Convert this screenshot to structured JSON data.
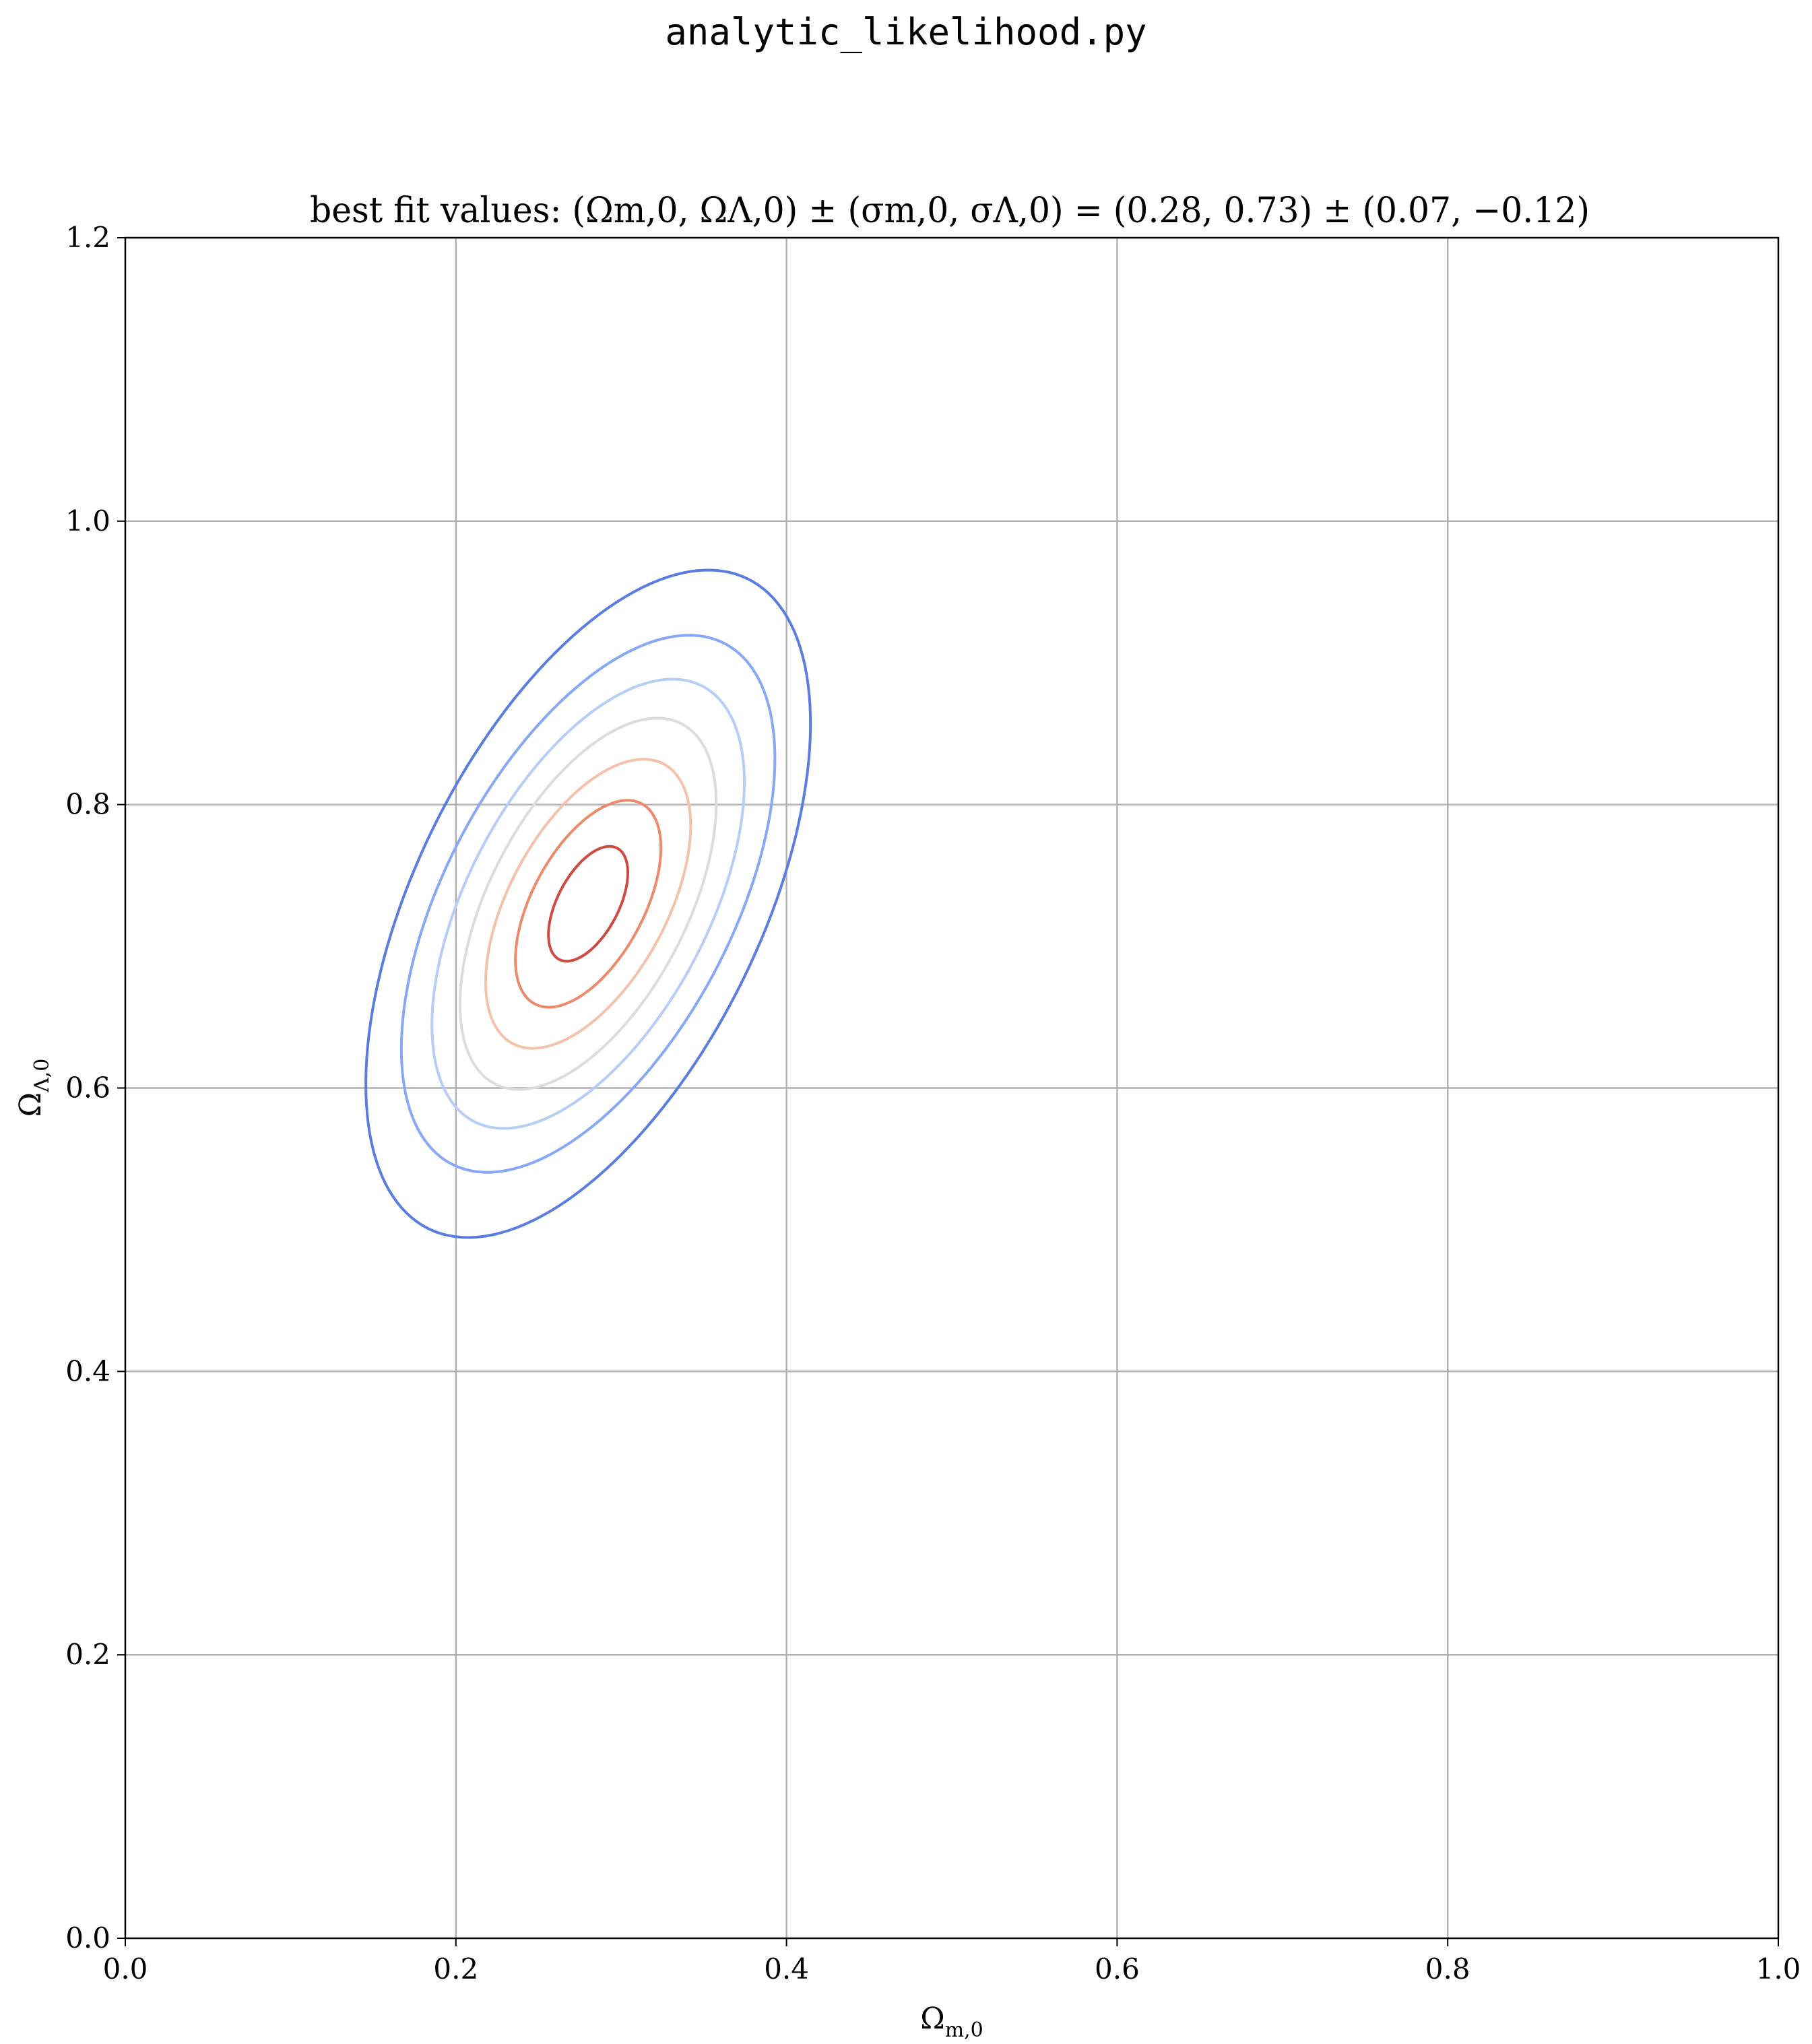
{
  "figure": {
    "suptitle": "analytic_likelihood.py"
  },
  "chart_data": {
    "type": "contour",
    "title": "best fit values: (Ωm,0, ΩΛ,0) ± (σm,0, σΛ,0) = (0.28, 0.73) ± (0.07, −0.12)",
    "xlabel": {
      "main": "Ω",
      "sub": "m,0"
    },
    "ylabel": {
      "main": "Ω",
      "sub": "Λ,0"
    },
    "xlim": [
      0.0,
      1.0
    ],
    "ylim": [
      0.0,
      1.2
    ],
    "xticks": [
      0.0,
      0.2,
      0.4,
      0.6,
      0.8,
      1.0
    ],
    "yticks": [
      0.0,
      0.2,
      0.4,
      0.6,
      0.8,
      1.0,
      1.2
    ],
    "xtick_labels": [
      "0.0",
      "0.2",
      "0.4",
      "0.6",
      "0.8",
      "1.0"
    ],
    "ytick_labels": [
      "0.0",
      "0.2",
      "0.4",
      "0.6",
      "0.8",
      "1.0",
      "1.2"
    ],
    "grid": true,
    "colormap": "coolwarm",
    "best_fit": {
      "x": 0.28,
      "y": 0.73
    },
    "contours": [
      {
        "level": 1,
        "color": "#5b7de0",
        "x_range": [
          0.133,
          0.402
        ],
        "y_range": [
          0.476,
          0.947
        ]
      },
      {
        "level": 2,
        "color": "#87a8f5",
        "x_range": [
          0.161,
          0.387
        ],
        "y_range": [
          0.527,
          0.906
        ]
      },
      {
        "level": 3,
        "color": "#b6cdf5",
        "x_range": [
          0.181,
          0.37
        ],
        "y_range": [
          0.561,
          0.878
        ]
      },
      {
        "level": 4,
        "color": "#dcdcdc",
        "x_range": [
          0.2,
          0.355
        ],
        "y_range": [
          0.59,
          0.852
        ]
      },
      {
        "level": 5,
        "color": "#f4c2ab",
        "x_range": [
          0.215,
          0.339
        ],
        "y_range": [
          0.622,
          0.826
        ]
      },
      {
        "level": 6,
        "color": "#ed8a6c",
        "x_range": [
          0.234,
          0.322
        ],
        "y_range": [
          0.652,
          0.798
        ]
      },
      {
        "level": 7,
        "color": "#cf4a40",
        "x_range": [
          0.255,
          0.303
        ],
        "y_range": [
          0.685,
          0.766
        ]
      }
    ]
  }
}
